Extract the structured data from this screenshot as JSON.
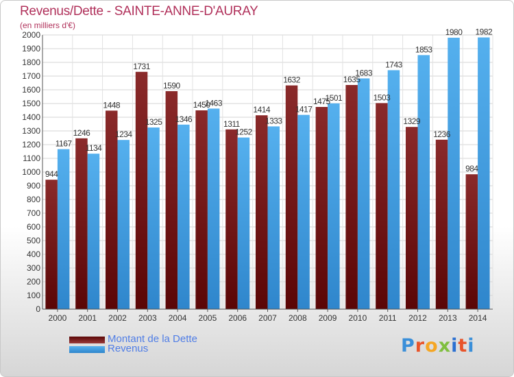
{
  "chart_data": {
    "type": "bar",
    "title": "Revenus/Dette - SAINTE-ANNE-D'AURAY",
    "subtitle": "(en milliers d'€)",
    "xlabel": "",
    "ylabel": "",
    "ylim": [
      0,
      2000
    ],
    "ytick_step": 100,
    "grid": true,
    "legend_position": "bottom-left",
    "categories": [
      "2000",
      "2001",
      "2002",
      "2003",
      "2004",
      "2005",
      "2006",
      "2007",
      "2008",
      "2009",
      "2010",
      "2011",
      "2012",
      "2013",
      "2014"
    ],
    "series": [
      {
        "name": "Montant de la Dette",
        "color": "#7a1f20",
        "values": [
          944,
          1246,
          1448,
          1731,
          1590,
          1450,
          1311,
          1414,
          1632,
          1475,
          1635,
          1503,
          1329,
          1236,
          984
        ],
        "data_labels": [
          "944",
          "1246",
          "1448",
          "1731",
          "1590",
          "1450",
          "1311",
          "1414",
          "1632",
          "1475",
          "1635",
          "1503",
          "1329",
          "1236",
          "984"
        ]
      },
      {
        "name": "Revenus",
        "color": "#4ba6e8",
        "values": [
          1167,
          1134,
          1234,
          1325,
          1346,
          1463,
          1252,
          1333,
          1417,
          1501,
          1683,
          1743,
          1853,
          1980,
          1982
        ],
        "data_labels": [
          "1167",
          "1134",
          "1234",
          "1325",
          "1346",
          "1463",
          "1252",
          "1333",
          "1417",
          "1501",
          "1683",
          "1743",
          "1853",
          "1980",
          "1982"
        ]
      }
    ]
  },
  "legend": {
    "items": [
      {
        "label": "Montant de la Dette",
        "color": "#7a1f20"
      },
      {
        "label": "Revenus",
        "color": "#4ba6e8"
      }
    ]
  },
  "brand": {
    "text": "Proxiti",
    "letter_colors": [
      "#3a8fd9",
      "#e8542a",
      "#f5a623",
      "#7fbf3f",
      "#2a6fd1",
      "#e8542a",
      "#3a8fd9"
    ]
  }
}
